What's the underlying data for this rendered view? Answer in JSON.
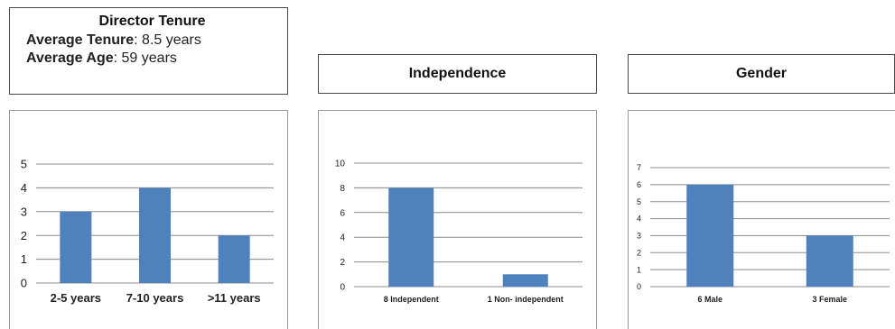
{
  "header": {
    "title": "Director Tenure",
    "avg_tenure_label": "Average Tenure",
    "avg_tenure_value": ": 8.5 years",
    "avg_age_label": "Average Age",
    "avg_age_value": ": 59 years"
  },
  "titles": {
    "independence": "Independence",
    "gender": "Gender"
  },
  "colors": {
    "bar": "#4f81bd",
    "grid": "#8c8c8c"
  },
  "chart_data": [
    {
      "type": "bar",
      "title": "Director Tenure",
      "categories": [
        "2-5 years",
        "7-10 years",
        ">11 years"
      ],
      "values": [
        3,
        4,
        2
      ],
      "ylim": [
        0,
        5
      ],
      "yticks": [
        0,
        1,
        2,
        3,
        4,
        5
      ],
      "grid": true
    },
    {
      "type": "bar",
      "title": "Independence",
      "categories": [
        "8 Independent",
        "1 Non- independent"
      ],
      "values": [
        8,
        1
      ],
      "ylim": [
        0,
        10
      ],
      "yticks": [
        0,
        2,
        4,
        6,
        8,
        10
      ],
      "grid": true
    },
    {
      "type": "bar",
      "title": "Gender",
      "categories": [
        "6 Male",
        "3 Female"
      ],
      "values": [
        6,
        3
      ],
      "ylim": [
        0,
        7
      ],
      "yticks": [
        0,
        1,
        2,
        3,
        4,
        5,
        6,
        7
      ],
      "grid": true
    }
  ]
}
